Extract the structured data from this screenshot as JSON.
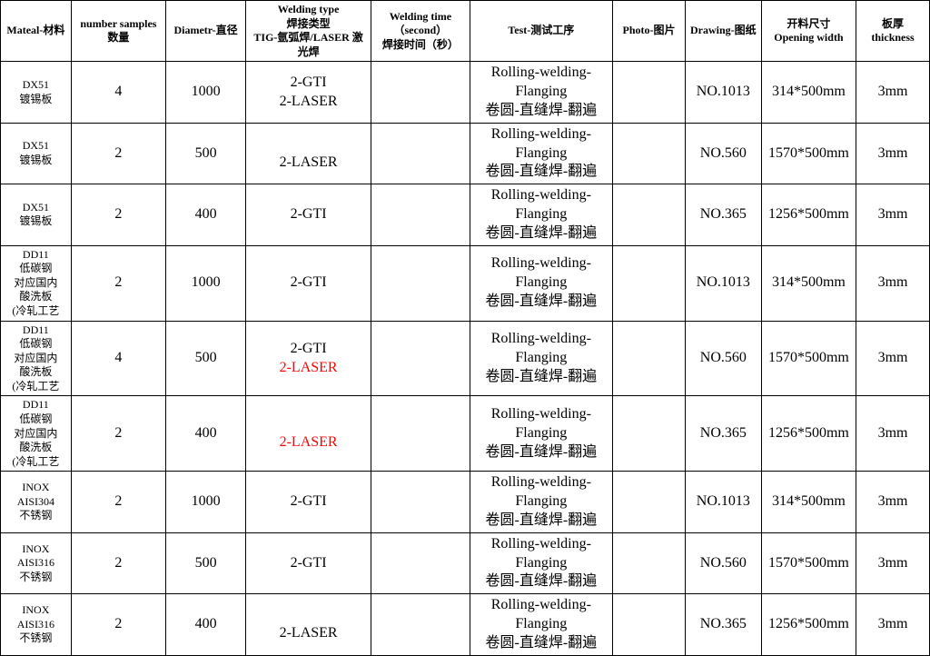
{
  "columns": [
    {
      "key": "material",
      "label": "Mateal-材料"
    },
    {
      "key": "samples",
      "label": "number samples\n数量"
    },
    {
      "key": "diameter",
      "label": "Diametr-直径"
    },
    {
      "key": "welding",
      "label": "Welding type\n焊接类型\nTIG-氩弧焊/LASER 激光焊"
    },
    {
      "key": "time",
      "label": "Welding time\n（second）\n焊接时间（秒）"
    },
    {
      "key": "test",
      "label": "Test-测试工序"
    },
    {
      "key": "photo",
      "label": "Photo-图片"
    },
    {
      "key": "drawing",
      "label": "Drawing-图纸"
    },
    {
      "key": "opening",
      "label": "开料尺寸\nOpening width"
    },
    {
      "key": "thick",
      "label": "板厚\nthickness"
    }
  ],
  "rows": [
    {
      "material": [
        "DX51",
        "镀锡板"
      ],
      "samples": "4",
      "diameter": "1000",
      "welding": [
        {
          "text": "2-GTI"
        },
        {
          "text": "2-LASER"
        }
      ],
      "time": "",
      "test": "Rolling-welding-Flanging\n卷圆-直缝焊-翻遍",
      "photo": "",
      "drawing": "NO.1013",
      "opening": "314*500mm",
      "thick": "3mm"
    },
    {
      "material": [
        "DX51",
        "镀锡板"
      ],
      "samples": "2",
      "diameter": "500",
      "welding": [
        {
          "text": ""
        },
        {
          "text": "2-LASER"
        }
      ],
      "time": "",
      "test": "Rolling-welding-Flanging\n卷圆-直缝焊-翻遍",
      "photo": "",
      "drawing": "NO.560",
      "opening": "1570*500mm",
      "thick": "3mm"
    },
    {
      "material": [
        "DX51",
        "镀锡板"
      ],
      "samples": "2",
      "diameter": "400",
      "welding": [
        {
          "text": "2-GTI"
        }
      ],
      "time": "",
      "test": "Rolling-welding-Flanging\n卷圆-直缝焊-翻遍",
      "photo": "",
      "drawing": "NO.365",
      "opening": "1256*500mm",
      "thick": "3mm"
    },
    {
      "material": [
        "DD11",
        "低碳钢",
        "对应国内",
        "酸洗板",
        "(冷轧工艺"
      ],
      "samples": "2",
      "diameter": "1000",
      "welding": [
        {
          "text": "2-GTI"
        }
      ],
      "time": "",
      "test": "Rolling-welding-Flanging\n卷圆-直缝焊-翻遍",
      "photo": "",
      "drawing": "NO.1013",
      "opening": "314*500mm",
      "thick": "3mm"
    },
    {
      "material": [
        "DD11",
        "低碳钢",
        "对应国内",
        "酸洗板",
        "(冷轧工艺"
      ],
      "samples": "4",
      "diameter": "500",
      "welding": [
        {
          "text": "2-GTI"
        },
        {
          "text": "2-LASER",
          "color": "#ff0000"
        }
      ],
      "time": "",
      "test": "Rolling-welding-Flanging\n卷圆-直缝焊-翻遍",
      "photo": "",
      "drawing": "NO.560",
      "opening": "1570*500mm",
      "thick": "3mm"
    },
    {
      "material": [
        "DD11",
        "低碳钢",
        "对应国内",
        "酸洗板",
        "(冷轧工艺"
      ],
      "samples": "2",
      "diameter": "400",
      "welding": [
        {
          "text": ""
        },
        {
          "text": "2-LASER",
          "color": "#ff0000"
        }
      ],
      "time": "",
      "test": "Rolling-welding-Flanging\n卷圆-直缝焊-翻遍",
      "photo": "",
      "drawing": "NO.365",
      "opening": "1256*500mm",
      "thick": "3mm"
    },
    {
      "material": [
        "INOX",
        "AISI304",
        "不锈钢"
      ],
      "samples": "2",
      "diameter": "1000",
      "welding": [
        {
          "text": "2-GTI"
        }
      ],
      "time": "",
      "test": "Rolling-welding-Flanging\n卷圆-直缝焊-翻遍",
      "photo": "",
      "drawing": "NO.1013",
      "opening": "314*500mm",
      "thick": "3mm"
    },
    {
      "material": [
        "INOX",
        "AISI316",
        "不锈钢"
      ],
      "samples": "2",
      "diameter": "500",
      "welding": [
        {
          "text": "2-GTI"
        }
      ],
      "time": "",
      "test": "Rolling-welding-Flanging\n卷圆-直缝焊-翻遍",
      "photo": "",
      "drawing": "NO.560",
      "opening": "1570*500mm",
      "thick": "3mm"
    },
    {
      "material": [
        "INOX",
        "AISI316",
        "不锈钢"
      ],
      "samples": "2",
      "diameter": "400",
      "welding": [
        {
          "text": ""
        },
        {
          "text": "2-LASER"
        }
      ],
      "time": "",
      "test": "Rolling-welding-Flanging\n卷圆-直缝焊-翻遍",
      "photo": "",
      "drawing": "NO.365",
      "opening": "1256*500mm",
      "thick": "3mm"
    }
  ]
}
